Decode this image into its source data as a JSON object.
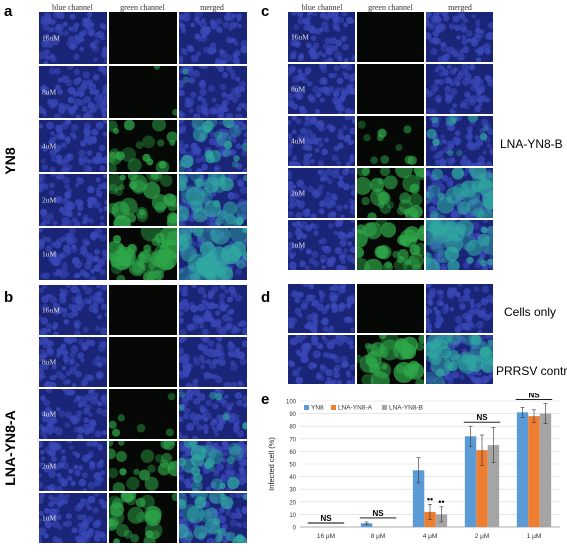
{
  "panels": {
    "a": {
      "letter": "a",
      "side_label": "YN8",
      "headers": [
        "blue channel",
        "green channel",
        "merged"
      ],
      "rows": [
        {
          "label": "16uM",
          "green": 0.0
        },
        {
          "label": "8uM",
          "green": 0.05
        },
        {
          "label": "4uM",
          "green": 0.5
        },
        {
          "label": "2uM",
          "green": 0.75
        },
        {
          "label": "1uM",
          "green": 0.95
        }
      ]
    },
    "b": {
      "letter": "b",
      "side_label": "LNA-YN8-A",
      "headers": [
        "blue channel",
        "green channel",
        "merged"
      ],
      "rows": [
        {
          "label": "16uM",
          "green": 0.0
        },
        {
          "label": "8uM",
          "green": 0.0
        },
        {
          "label": "4uM",
          "green": 0.15
        },
        {
          "label": "2uM",
          "green": 0.55
        },
        {
          "label": "1uM",
          "green": 0.65
        }
      ]
    },
    "c": {
      "letter": "c",
      "side_label": "LNA-YN8-B",
      "headers": [
        "blue channel",
        "green channel",
        "merged"
      ],
      "rows": [
        {
          "label": "16uM",
          "green": 0.0
        },
        {
          "label": "8uM",
          "green": 0.0
        },
        {
          "label": "4uM",
          "green": 0.25
        },
        {
          "label": "2uM",
          "green": 0.7
        },
        {
          "label": "1uM",
          "green": 0.8
        }
      ]
    },
    "d": {
      "letter": "d",
      "rows": [
        {
          "label": "Cells only",
          "green": 0.0
        },
        {
          "label": "PRRSV control",
          "green": 0.85
        }
      ]
    }
  },
  "colors": {
    "blue_bg": "#1a2578",
    "blue_nuc": "#3a48b8",
    "green": "#2fa84a",
    "yn8": "#5b9bd5",
    "lna_a": "#ed7d31",
    "lna_b": "#a5a5a5"
  },
  "chart_data": {
    "panel_letter": "e",
    "type": "bar",
    "categories": [
      "16 μM",
      "8 μM",
      "4 μM",
      "2 μM",
      "1 μM"
    ],
    "series": [
      {
        "name": "YN8",
        "values": [
          0,
          3,
          45,
          72,
          91
        ],
        "errors": [
          0,
          1,
          10,
          8,
          4
        ]
      },
      {
        "name": "LNA-YN8-A",
        "values": [
          0,
          0,
          12,
          61,
          88
        ],
        "errors": [
          0,
          0,
          6,
          12,
          5
        ]
      },
      {
        "name": "LNA-YN8-B",
        "values": [
          0,
          0,
          10,
          65,
          90
        ],
        "errors": [
          0,
          0,
          6,
          14,
          8
        ]
      }
    ],
    "ylabel": "Infected cell (%)",
    "ylim": [
      0,
      100
    ],
    "yticks": [
      0,
      10,
      20,
      30,
      40,
      50,
      60,
      70,
      80,
      90,
      100
    ],
    "annotations": [
      {
        "text": "NS",
        "category": 0
      },
      {
        "text": "NS",
        "category": 1
      },
      {
        "text": "NS",
        "category": 3
      },
      {
        "text": "NS",
        "category": 4
      }
    ],
    "significance": [
      {
        "text": "••",
        "category": 2,
        "series": 1
      },
      {
        "text": "••",
        "category": 2,
        "series": 2
      }
    ]
  }
}
